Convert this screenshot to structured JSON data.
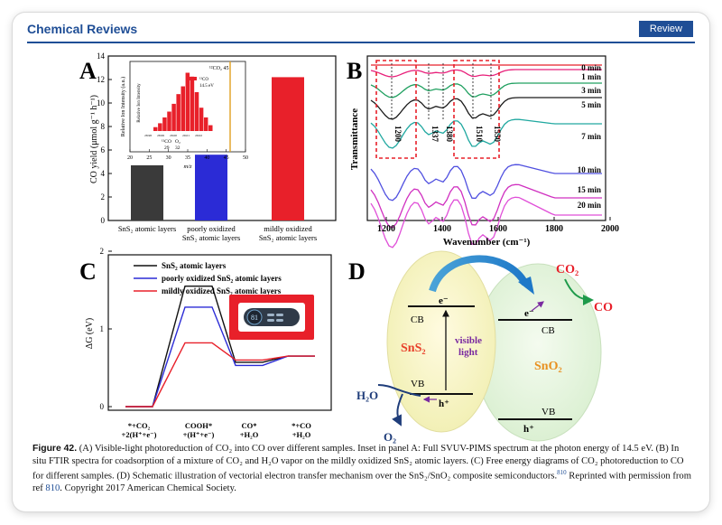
{
  "header": {
    "journal": "Chemical Reviews",
    "badge": "Review"
  },
  "panels": {
    "a": {
      "letter": "A",
      "ylabel": "CO yield (μmol g⁻¹ h⁻¹)",
      "yticks": [
        "0",
        "2",
        "4",
        "6",
        "8",
        "10",
        "12",
        "14"
      ],
      "bars": [
        {
          "l1": "SnS₂ atomic layers",
          "l2": "",
          "value": 4.7,
          "color": "#3a3a3a"
        },
        {
          "l1": "poorly oxidized",
          "l2": "SnS₂ atomic layers",
          "value": 5.6,
          "color": "#2b2bd6"
        },
        {
          "l1": "mildly oxidized",
          "l2": "SnS₂ atomic layers",
          "value": 12.2,
          "color": "#e8202a"
        }
      ],
      "inset": {
        "ylabel": "Relative Ion Intensity (a.u.)",
        "xlabel": "m/z",
        "xticks": [
          "20",
          "25",
          "30",
          "35",
          "40",
          "45",
          "50"
        ],
        "peak_label": "¹²CO₂ 45",
        "legend": "¹²CO",
        "legend2": "14.5 eV",
        "sub_y": "Relative Ion Intensity",
        "ticks_co": [
          "28.98",
          "28.99",
          "29.00",
          "29.01",
          "29.02"
        ],
        "annot1": "¹²CO",
        "annot2": "29",
        "annot3": "O₂",
        "annot4": "32",
        "peaks": [
          2,
          4,
          7,
          10,
          14,
          19,
          23,
          30,
          28,
          20,
          12,
          7,
          3
        ]
      }
    },
    "b": {
      "letter": "B",
      "ylabel": "Transmittance",
      "xlabel": "Wavenumber (cm⁻¹)",
      "xticks": [
        "1200",
        "1400",
        "1600",
        "1800",
        "2000"
      ],
      "series": [
        "0 min",
        "1 min",
        "3 min",
        "5 min",
        "7 min",
        "10 min",
        "15 min",
        "20 min"
      ],
      "peaks": [
        "1200",
        "1337",
        "1380",
        "1510",
        "1550"
      ]
    },
    "c": {
      "letter": "C",
      "ylabel": "ΔG (eV)",
      "yticks": [
        "0",
        "1",
        "2"
      ],
      "legend": [
        "SnS₂ atomic layers",
        "poorly oxidized SnS₂ atomic layers",
        "mildly oxidized SnS₂ atomic layers"
      ],
      "x": [
        {
          "l1": "*+CO₂",
          "l2": "+2(H⁺+e⁻)"
        },
        {
          "l1": "COOH*",
          "l2": "+(H⁺+e⁻)"
        },
        {
          "l1": "CO*",
          "l2": "+H₂O"
        },
        {
          "l1": "*+CO",
          "l2": "+H₂O"
        }
      ],
      "levels": {
        "black": [
          0,
          1.55,
          0.57,
          0.65
        ],
        "blue": [
          0,
          1.28,
          0.53,
          0.65
        ],
        "red": [
          0,
          0.82,
          0.6,
          0.65
        ]
      },
      "overlay_text": "81"
    },
    "d": {
      "letter": "D",
      "sns2": "SnS₂",
      "sno2": "SnO₂",
      "cb": "CB",
      "vb": "VB",
      "e": "e⁻",
      "h": "h⁺",
      "visible": "visible",
      "light": "light",
      "co2": "CO₂",
      "co": "CO",
      "h2o": "H₂O",
      "o2": "O₂"
    }
  },
  "caption": {
    "label": "Figure 42.",
    "text": "(A) Visible-light photoreduction of CO₂ into CO over different samples. Inset in panel A: Full SVUV-PIMS spectrum at the photon energy of 14.5 eV. (B) In situ FTIR spectra for coadsorption of a mixture of CO₂ and H₂O vapor on the mildly oxidized SnS₂ atomic layers. (C) Free energy diagrams of CO₂ photoreduction to CO for different samples. (D) Schematic illustration of vectorial electron transfer mechanism over the SnS₂/SnO₂ composite semiconductors.",
    "refsup": "810",
    "tail": " Reprinted with permission from ref ",
    "ref": "810",
    "end": ". Copyright 2017 American Chemical Society."
  }
}
